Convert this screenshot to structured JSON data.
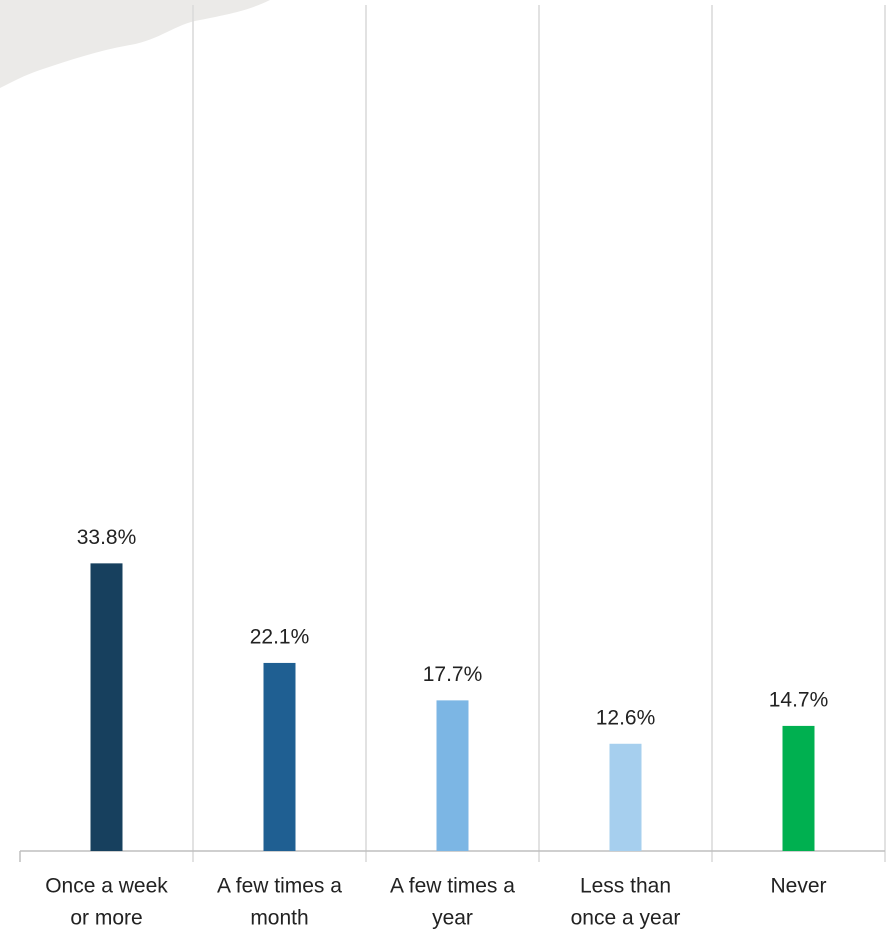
{
  "chart_data": {
    "type": "bar",
    "categories": [
      [
        "Once a week",
        "or more"
      ],
      [
        "A few times a",
        "month"
      ],
      [
        "A few times a",
        "year"
      ],
      [
        "Less than",
        "once a year"
      ],
      [
        "Never"
      ]
    ],
    "values": [
      33.8,
      22.1,
      17.7,
      12.6,
      14.7
    ],
    "value_labels": [
      "33.8%",
      "22.1%",
      "17.7%",
      "12.6%",
      "14.7%"
    ],
    "colors": [
      "#17405e",
      "#1f5f92",
      "#7cb6e4",
      "#a6cfee",
      "#00b050"
    ],
    "ylim": [
      0,
      100
    ]
  }
}
